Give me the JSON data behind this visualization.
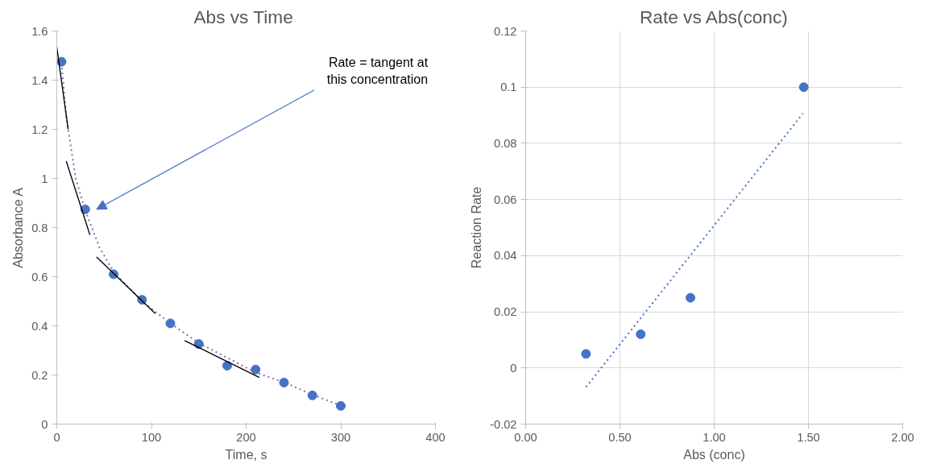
{
  "chart_data": [
    {
      "type": "scatter",
      "title": "Abs  vs Time",
      "xlabel": "Time, s",
      "ylabel": "Absorbance A",
      "xlim": [
        0,
        400
      ],
      "xticks": [
        0,
        100,
        200,
        300,
        400
      ],
      "ylim": [
        0,
        1.6
      ],
      "yticks": [
        0,
        0.2,
        0.4,
        0.6,
        0.8,
        1,
        1.2,
        1.4,
        1.6
      ],
      "grid": false,
      "x": [
        5,
        30,
        60,
        90,
        120,
        150,
        180,
        210,
        240,
        270,
        300
      ],
      "series": [
        {
          "color": "#4472c4",
          "marker": "circle",
          "values": [
            1.475,
            0.874,
            0.61,
            0.506,
            0.41,
            0.326,
            0.238,
            0.222,
            0.169,
            0.117,
            0.074
          ]
        },
        {
          "type": "line",
          "line_style": "dotted",
          "color": "#7b6fb8",
          "x": [
            5,
            10,
            20,
            30,
            45,
            60,
            90,
            120,
            150,
            180,
            210,
            240,
            270,
            300
          ],
          "values": [
            1.47,
            1.25,
            1.0,
            0.87,
            0.72,
            0.62,
            0.5,
            0.41,
            0.33,
            0.27,
            0.21,
            0.17,
            0.12,
            0.075
          ]
        },
        {
          "type": "line",
          "line_style": "solid",
          "color": "#000000",
          "x": [
            0,
            12
          ],
          "values": [
            1.535,
            1.2
          ]
        },
        {
          "type": "line",
          "line_style": "solid",
          "color": "#000000",
          "x": [
            10,
            35
          ],
          "values": [
            1.07,
            0.77
          ]
        },
        {
          "type": "line",
          "line_style": "solid",
          "color": "#000000",
          "x": [
            42,
            104
          ],
          "values": [
            0.68,
            0.45
          ]
        },
        {
          "type": "line",
          "line_style": "solid",
          "color": "#000000",
          "x": [
            135,
            214
          ],
          "values": [
            0.34,
            0.19
          ]
        }
      ],
      "annotations": [
        "Rate = tangent at\nthis concentration"
      ]
    },
    {
      "type": "scatter",
      "title": "Rate vs Abs(conc)",
      "xlabel": "Abs (conc)",
      "ylabel": "Reaction Rate",
      "xlim": [
        0,
        2
      ],
      "xticks": [
        {
          "value": 0,
          "label": "0.00"
        },
        {
          "value": 0.5,
          "label": "0.50"
        },
        {
          "value": 1,
          "label": "1.00"
        },
        {
          "value": 1.5,
          "label": "1.50"
        },
        {
          "value": 2,
          "label": "2.00"
        }
      ],
      "ylim": [
        -0.02,
        0.12
      ],
      "yticks": [
        -0.02,
        0,
        0.02,
        0.04,
        0.06,
        0.08,
        0.1,
        0.12
      ],
      "grid": true,
      "x": [
        0.32,
        0.61,
        0.874,
        1.475
      ],
      "series": [
        {
          "color": "#4472c4",
          "marker": "circle",
          "values": [
            0.005,
            0.012,
            0.025,
            0.1
          ]
        },
        {
          "type": "line",
          "line_style": "dotted",
          "color": "#4472c4",
          "x": [
            0.32,
            1.47
          ],
          "values": [
            -0.0068,
            0.0906
          ]
        }
      ]
    }
  ]
}
